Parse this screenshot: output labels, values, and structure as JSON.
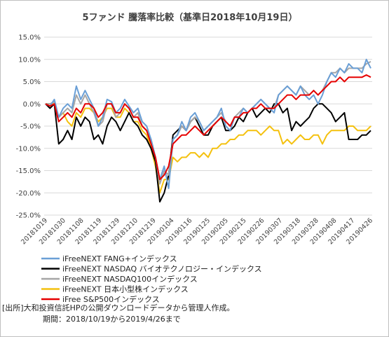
{
  "chart_data": {
    "type": "line",
    "title": "5ファンド 騰落率比較（基準日2018年10月19日）",
    "xlabel": "",
    "ylabel": "",
    "ylim": [
      -25,
      15
    ],
    "yticks": [
      15,
      10,
      5,
      0,
      -5,
      -10,
      -15,
      -20,
      -25
    ],
    "ytick_labels": [
      "15.0%",
      "10.0%",
      "5.0%",
      "0.0%",
      "-5.0%",
      "-10.0%",
      "-15.0%",
      "-20.0%",
      "-25.0%"
    ],
    "x_range": [
      "2018-10-19",
      "2019-04-26"
    ],
    "x_tick_labels": [
      "20181019",
      "20181030",
      "20181108",
      "20181119",
      "20181129",
      "20181210",
      "20181219",
      "20190104",
      "20190116",
      "20190125",
      "20190205",
      "20190215",
      "20190226",
      "20190307",
      "20190318",
      "20190328",
      "20190408",
      "20190417",
      "20190426"
    ],
    "grid": "horizontal",
    "legend_position": "bottom",
    "series": [
      {
        "name": "iFreeNEXT FANG+インデックス",
        "color": "#6a9fd6",
        "y": [
          0,
          -0.5,
          1,
          -3,
          -1,
          0,
          -1,
          4,
          1,
          3,
          1,
          -1,
          -5,
          -3,
          1,
          0.5,
          -2,
          -1,
          1,
          -0.5,
          -2,
          -1,
          -4,
          -5,
          -8,
          -12,
          -17,
          -14,
          -19,
          -8,
          -7,
          -4,
          -6,
          -3,
          -2,
          -4,
          -6,
          -5,
          -4,
          -3,
          -1,
          -5,
          -6,
          -3,
          -3,
          -1,
          -2,
          -1,
          0,
          1,
          0,
          -1,
          -2,
          2,
          3,
          4,
          3,
          2,
          4,
          2,
          1,
          2,
          0,
          2,
          5,
          7,
          6,
          8,
          7,
          9,
          8,
          8,
          7,
          10,
          8
        ]
      },
      {
        "name": "iFreeNEXT NASDAQ バイオテクノロジー・インデックス",
        "color": "#000000",
        "y": [
          0,
          -1,
          0,
          -9,
          -8,
          -6,
          -8,
          -3,
          -5,
          -3,
          -4,
          -8,
          -7,
          -9,
          -5,
          -3,
          -4,
          -6,
          -4,
          -2,
          -4,
          -5,
          -7,
          -8,
          -10,
          -13,
          -22,
          -20,
          -16,
          -7,
          -6,
          -5,
          -6,
          -4,
          -3,
          -5,
          -7,
          -7,
          -5,
          -4,
          -3,
          -6,
          -6,
          -5,
          -3,
          -4,
          -2,
          -1,
          -3,
          -2,
          -1,
          -2,
          0,
          0,
          -2,
          -1,
          -6,
          -4,
          -5,
          -4,
          -3,
          -1,
          0,
          0,
          -1,
          -2,
          -4,
          -3,
          -2,
          -8,
          -8,
          -8,
          -7,
          -7,
          -6
        ]
      },
      {
        "name": "iFreeNEXT NASDAQ100インデックス",
        "color": "#a6a6a6",
        "y": [
          0,
          0,
          0.5,
          -3,
          -2,
          -1,
          -2,
          2,
          0,
          2,
          0,
          -2,
          -5,
          -4,
          0,
          0,
          -3,
          -2,
          0,
          -1,
          -3,
          -2,
          -5,
          -6,
          -8,
          -12,
          -18,
          -15,
          -16,
          -8,
          -7,
          -5,
          -6,
          -4,
          -3,
          -4,
          -6,
          -5,
          -4,
          -3,
          -2,
          -4,
          -5,
          -3,
          -2,
          -1,
          -2,
          -1,
          0,
          1,
          0,
          -1,
          -1,
          2,
          3,
          4,
          3,
          2,
          4,
          3,
          2,
          3,
          2,
          3,
          5,
          7,
          7,
          8,
          7,
          8,
          8,
          8,
          8,
          9,
          9.5
        ]
      },
      {
        "name": "iFreeNEXT 日本小型株インデックス",
        "color": "#f4c10f",
        "y": [
          0,
          0,
          0,
          -3,
          -2,
          -4,
          -5,
          -2,
          -3,
          -1,
          -1,
          -2,
          -4,
          -3,
          -1,
          -1,
          -3,
          -3,
          -1,
          -2,
          -4,
          -4,
          -6,
          -7,
          -10,
          -14,
          -20,
          -17,
          -17,
          -12,
          -13,
          -12,
          -12,
          -11,
          -11,
          -12,
          -11,
          -12,
          -10,
          -10,
          -9,
          -9,
          -8,
          -8,
          -7,
          -7,
          -6,
          -6,
          -6,
          -7,
          -6,
          -5,
          -6,
          -6,
          -9,
          -8,
          -9,
          -8,
          -7,
          -8,
          -8,
          -7,
          -7,
          -9,
          -7,
          -6,
          -6,
          -6,
          -6,
          -5,
          -5,
          -6,
          -6,
          -6,
          -5
        ]
      },
      {
        "name": "iFree S&P500インデックス",
        "color": "#e60000",
        "y": [
          0,
          -0.5,
          0,
          -4,
          -3,
          -2,
          -3,
          -1,
          -2,
          0,
          0,
          -1,
          -3,
          -2,
          0,
          0,
          -2,
          -2,
          0,
          -1,
          -3,
          -3,
          -5,
          -6,
          -9,
          -12,
          -17,
          -16,
          -14,
          -9,
          -8,
          -7,
          -7,
          -6,
          -5,
          -6,
          -7,
          -6,
          -5,
          -4,
          -3,
          -4,
          -5,
          -3,
          -3,
          -2,
          -2,
          -1,
          -1,
          0,
          -1,
          -1,
          -1,
          0,
          1,
          2,
          2,
          1,
          2,
          2,
          2,
          3,
          2,
          3,
          4,
          5,
          5,
          6,
          5,
          6,
          6,
          6,
          6,
          6.5,
          6
        ]
      }
    ]
  },
  "notes": {
    "source": "[出所]大和投資信託HPの公開ダウンロードデータから管理人作成。",
    "period": "期間：2018/10/19から2019/4/26まで"
  }
}
